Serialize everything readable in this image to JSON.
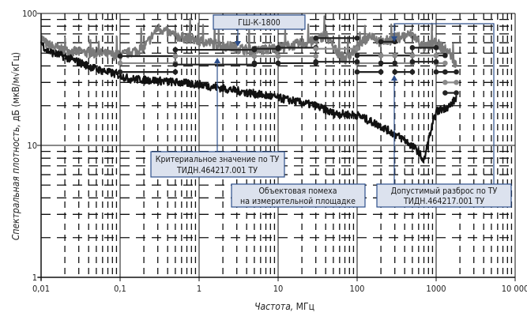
{
  "chart_data": {
    "type": "line",
    "xscale": "log",
    "yscale": "log",
    "xlim": [
      0.01,
      10000
    ],
    "ylim": [
      1,
      100
    ],
    "grid": true,
    "xlabel_italic": "Частота,",
    "xlabel_unit": "МГц",
    "ylabel_italic": "Спектральная плотность,",
    "ylabel_unit": "дБ (мкВ/м√кГц)",
    "x_ticks": [
      {
        "v": 0.01,
        "label": "0,01"
      },
      {
        "v": 0.1,
        "label": "0,1"
      },
      {
        "v": 1,
        "label": "1"
      },
      {
        "v": 10,
        "label": "10"
      },
      {
        "v": 100,
        "label": "100"
      },
      {
        "v": 1000,
        "label": "1000"
      },
      {
        "v": 10000,
        "label": "10 000"
      }
    ],
    "y_ticks": [
      {
        "v": 1,
        "label": "1"
      },
      {
        "v": 10,
        "label": "10"
      },
      {
        "v": 100,
        "label": "100"
      }
    ],
    "series": [
      {
        "name": "Объектовая помеха на измерительной площадке",
        "color": "#111111",
        "noise": 0.07,
        "points": [
          [
            0.01,
            60
          ],
          [
            0.012,
            52
          ],
          [
            0.02,
            47
          ],
          [
            0.05,
            38
          ],
          [
            0.1,
            34
          ],
          [
            0.13,
            32
          ],
          [
            0.3,
            31
          ],
          [
            1,
            29
          ],
          [
            3,
            26
          ],
          [
            10,
            23
          ],
          [
            30,
            20
          ],
          [
            50,
            17.5
          ],
          [
            100,
            17
          ],
          [
            200,
            14
          ],
          [
            400,
            11
          ],
          [
            600,
            9
          ],
          [
            700,
            7.5
          ],
          [
            800,
            11
          ],
          [
            1000,
            18
          ],
          [
            1500,
            20
          ],
          [
            1800,
            23
          ]
        ]
      },
      {
        "name": "ГШ-К-1800",
        "color": "#7a7a7a",
        "noise": 0.09,
        "points": [
          [
            0.01,
            66
          ],
          [
            0.012,
            58
          ],
          [
            0.02,
            52
          ],
          [
            0.05,
            50
          ],
          [
            0.1,
            48
          ],
          [
            0.2,
            55
          ],
          [
            0.3,
            78
          ],
          [
            0.5,
            68
          ],
          [
            1,
            62
          ],
          [
            3,
            55
          ],
          [
            5,
            52
          ],
          [
            10,
            55
          ],
          [
            30,
            62
          ],
          [
            40,
            70
          ],
          [
            50,
            55
          ],
          [
            70,
            45
          ],
          [
            100,
            55
          ],
          [
            150,
            70
          ],
          [
            200,
            60
          ],
          [
            300,
            65
          ],
          [
            500,
            70
          ],
          [
            700,
            55
          ],
          [
            1000,
            60
          ],
          [
            1500,
            50
          ],
          [
            1800,
            40
          ]
        ]
      }
    ],
    "criteria": [
      {
        "name": "upper",
        "color": "#222222",
        "steps": [
          [
            0.1,
            0.5,
            47.5
          ],
          [
            0.5,
            5,
            53
          ],
          [
            5,
            10,
            54
          ],
          [
            10,
            30,
            55
          ],
          [
            30,
            100,
            65
          ],
          [
            100,
            200,
            48
          ],
          [
            200,
            300,
            61
          ],
          [
            300,
            500,
            48
          ],
          [
            500,
            1000,
            55
          ],
          [
            1000,
            1300,
            48
          ],
          [
            1300,
            1800,
            36
          ]
        ]
      },
      {
        "name": "nominal",
        "color": "#8a8a8a",
        "steps": [
          [
            0.1,
            0.5,
            42
          ],
          [
            0.5,
            5,
            47.5
          ],
          [
            5,
            10,
            47.5
          ],
          [
            10,
            30,
            47.5
          ],
          [
            30,
            100,
            54
          ],
          [
            100,
            200,
            42
          ],
          [
            200,
            300,
            48
          ],
          [
            300,
            500,
            42
          ],
          [
            500,
            1000,
            48
          ],
          [
            1000,
            1300,
            42
          ],
          [
            1300,
            1800,
            30
          ]
        ]
      },
      {
        "name": "lower",
        "color": "#222222",
        "steps": [
          [
            0.1,
            0.5,
            36
          ],
          [
            0.5,
            5,
            41
          ],
          [
            5,
            10,
            42
          ],
          [
            10,
            30,
            42
          ],
          [
            30,
            100,
            43
          ],
          [
            100,
            200,
            36
          ],
          [
            200,
            300,
            42
          ],
          [
            300,
            500,
            36
          ],
          [
            500,
            1000,
            43
          ],
          [
            1000,
            1300,
            36
          ],
          [
            1300,
            1800,
            25
          ]
        ]
      }
    ],
    "annotations": {
      "generator": "ГШ-К-1800",
      "criterion_line1": "Критериальное значение по ТУ",
      "criterion_line2": "ТИДН.464217.001 ТУ",
      "noise_line1": "Объектовая помеха",
      "noise_line2": "на измерительной площадке",
      "tolerance_line1": "Допустимый разброс по ТУ",
      "tolerance_line2": "ТИДН.464217.001 ТУ"
    },
    "accent_color": "#2d4f8c"
  }
}
